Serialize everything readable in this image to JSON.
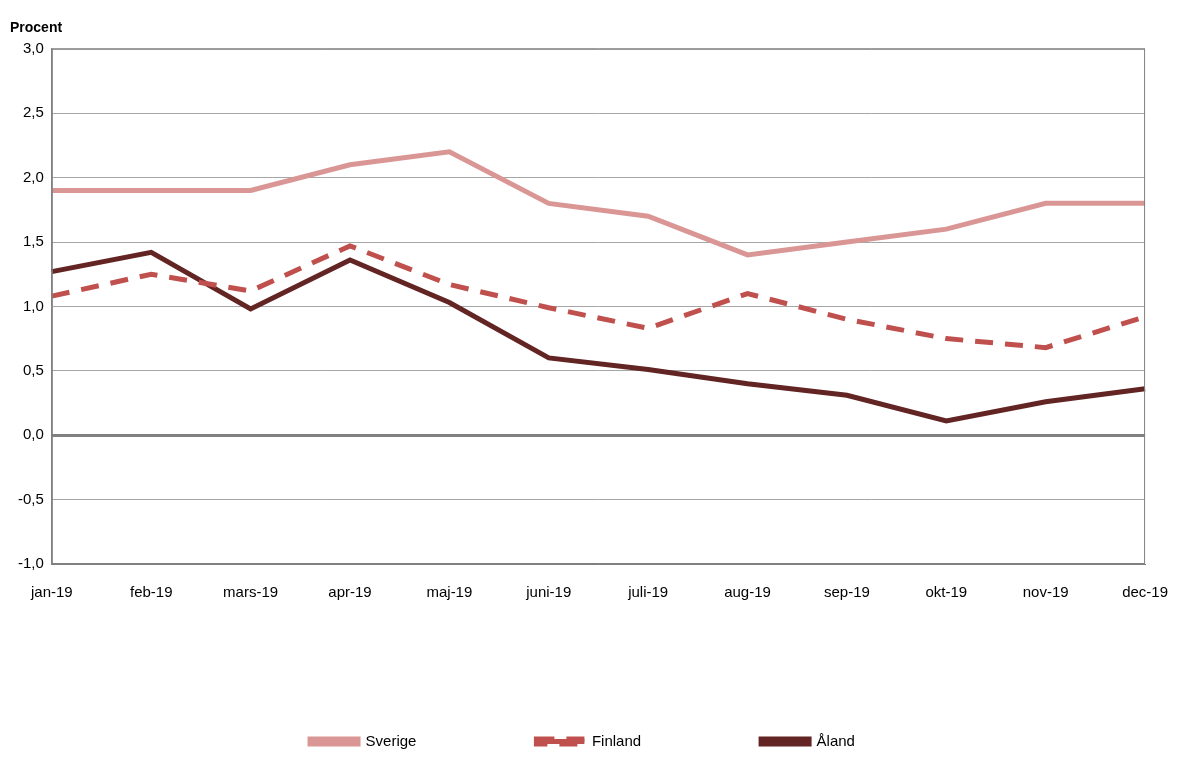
{
  "chart_data": {
    "type": "line",
    "y_label": "Procent",
    "categories": [
      "jan-19",
      "feb-19",
      "mars-19",
      "apr-19",
      "maj-19",
      "juni-19",
      "juli-19",
      "aug-19",
      "sep-19",
      "okt-19",
      "nov-19",
      "dec-19"
    ],
    "series": [
      {
        "name": "Sverige",
        "color": "#d99694",
        "line_style": "solid",
        "values": [
          1.9,
          1.9,
          1.9,
          2.1,
          2.2,
          1.8,
          1.7,
          1.4,
          1.5,
          1.6,
          1.8,
          1.8
        ]
      },
      {
        "name": "Finland",
        "color": "#c0504d",
        "line_style": "dashed",
        "values": [
          1.08,
          1.25,
          1.12,
          1.47,
          1.17,
          0.99,
          0.83,
          1.1,
          0.9,
          0.75,
          0.68,
          0.92
        ]
      },
      {
        "name": "Åland",
        "color": "#632523",
        "line_style": "solid",
        "values": [
          1.27,
          1.42,
          0.98,
          1.36,
          1.03,
          0.6,
          0.51,
          0.4,
          0.31,
          0.11,
          0.26,
          0.36
        ]
      }
    ],
    "ylim": [
      -1.0,
      3.0
    ],
    "yticks": [
      {
        "value": -1.0,
        "label": "-1,0"
      },
      {
        "value": -0.5,
        "label": "-0,5"
      },
      {
        "value": 0,
        "label": "0,0"
      },
      {
        "value": 0.5,
        "label": "0,5"
      },
      {
        "value": 1.0,
        "label": "1,0"
      },
      {
        "value": 1.5,
        "label": "1,5"
      },
      {
        "value": 2.0,
        "label": "2,0"
      },
      {
        "value": 2.5,
        "label": "2,5"
      },
      {
        "value": 3.0,
        "label": "3,0"
      }
    ],
    "grid": true,
    "legend": "bottom"
  }
}
